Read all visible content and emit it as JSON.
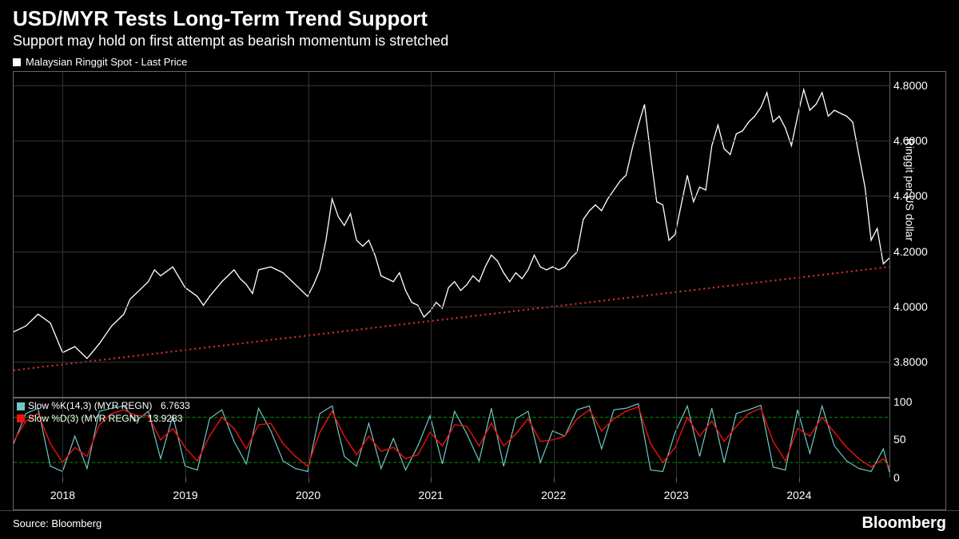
{
  "title": "USD/MYR Tests Long-Term Trend Support",
  "subtitle": "Support may hold on first attempt as bearish momentum is stretched",
  "legend_main": "Malaysian Ringgit Spot - Last Price",
  "legend_main_color": "#ffffff",
  "source": "Source: Bloomberg",
  "brand": "Bloomberg",
  "colors": {
    "background": "#000000",
    "text": "#ffffff",
    "grid": "#333333",
    "border": "#666666",
    "price_line": "#ffffff",
    "trendline": "#e03030",
    "slow_k": "#6fc8c8",
    "slow_d": "#f01010",
    "ref_line": "#009900"
  },
  "main_chart": {
    "type": "line",
    "ylabel": "Ringgit per US dollar",
    "ylim": [
      3.75,
      4.85
    ],
    "yticks": [
      3.8,
      4.0,
      4.2,
      4.4,
      4.6,
      4.8
    ],
    "xlim": [
      2017.6,
      2024.75
    ],
    "xticks": [
      2018,
      2019,
      2020,
      2021,
      2022,
      2023,
      2024
    ],
    "line_width": 1.3,
    "trendline": {
      "start": [
        2017.6,
        3.84
      ],
      "end": [
        2024.75,
        4.19
      ],
      "color": "#e03030",
      "style": "dotted",
      "width": 2
    },
    "data": [
      [
        2017.6,
        3.97
      ],
      [
        2017.7,
        3.99
      ],
      [
        2017.8,
        4.03
      ],
      [
        2017.9,
        4.0
      ],
      [
        2018.0,
        3.9
      ],
      [
        2018.1,
        3.92
      ],
      [
        2018.2,
        3.88
      ],
      [
        2018.3,
        3.93
      ],
      [
        2018.4,
        3.99
      ],
      [
        2018.5,
        4.03
      ],
      [
        2018.55,
        4.08
      ],
      [
        2018.6,
        4.1
      ],
      [
        2018.7,
        4.14
      ],
      [
        2018.75,
        4.18
      ],
      [
        2018.8,
        4.16
      ],
      [
        2018.9,
        4.19
      ],
      [
        2019.0,
        4.12
      ],
      [
        2019.1,
        4.09
      ],
      [
        2019.15,
        4.06
      ],
      [
        2019.2,
        4.09
      ],
      [
        2019.3,
        4.14
      ],
      [
        2019.4,
        4.18
      ],
      [
        2019.45,
        4.15
      ],
      [
        2019.5,
        4.13
      ],
      [
        2019.55,
        4.1
      ],
      [
        2019.6,
        4.18
      ],
      [
        2019.7,
        4.19
      ],
      [
        2019.8,
        4.17
      ],
      [
        2019.9,
        4.13
      ],
      [
        2020.0,
        4.09
      ],
      [
        2020.05,
        4.13
      ],
      [
        2020.1,
        4.18
      ],
      [
        2020.15,
        4.28
      ],
      [
        2020.2,
        4.42
      ],
      [
        2020.25,
        4.36
      ],
      [
        2020.3,
        4.33
      ],
      [
        2020.35,
        4.37
      ],
      [
        2020.4,
        4.28
      ],
      [
        2020.45,
        4.26
      ],
      [
        2020.5,
        4.28
      ],
      [
        2020.55,
        4.23
      ],
      [
        2020.6,
        4.16
      ],
      [
        2020.7,
        4.14
      ],
      [
        2020.75,
        4.17
      ],
      [
        2020.8,
        4.11
      ],
      [
        2020.85,
        4.07
      ],
      [
        2020.9,
        4.06
      ],
      [
        2020.95,
        4.02
      ],
      [
        2021.0,
        4.04
      ],
      [
        2021.05,
        4.07
      ],
      [
        2021.1,
        4.05
      ],
      [
        2021.15,
        4.12
      ],
      [
        2021.2,
        4.14
      ],
      [
        2021.25,
        4.11
      ],
      [
        2021.3,
        4.13
      ],
      [
        2021.35,
        4.16
      ],
      [
        2021.4,
        4.14
      ],
      [
        2021.45,
        4.19
      ],
      [
        2021.5,
        4.23
      ],
      [
        2021.55,
        4.21
      ],
      [
        2021.6,
        4.17
      ],
      [
        2021.65,
        4.14
      ],
      [
        2021.7,
        4.17
      ],
      [
        2021.75,
        4.15
      ],
      [
        2021.8,
        4.18
      ],
      [
        2021.85,
        4.23
      ],
      [
        2021.9,
        4.19
      ],
      [
        2021.95,
        4.18
      ],
      [
        2022.0,
        4.19
      ],
      [
        2022.05,
        4.18
      ],
      [
        2022.1,
        4.19
      ],
      [
        2022.15,
        4.22
      ],
      [
        2022.2,
        4.24
      ],
      [
        2022.25,
        4.35
      ],
      [
        2022.3,
        4.38
      ],
      [
        2022.35,
        4.4
      ],
      [
        2022.4,
        4.38
      ],
      [
        2022.45,
        4.42
      ],
      [
        2022.5,
        4.45
      ],
      [
        2022.55,
        4.48
      ],
      [
        2022.6,
        4.5
      ],
      [
        2022.65,
        4.59
      ],
      [
        2022.7,
        4.67
      ],
      [
        2022.75,
        4.74
      ],
      [
        2022.8,
        4.57
      ],
      [
        2022.85,
        4.41
      ],
      [
        2022.9,
        4.4
      ],
      [
        2022.95,
        4.28
      ],
      [
        2023.0,
        4.3
      ],
      [
        2023.05,
        4.4
      ],
      [
        2023.1,
        4.5
      ],
      [
        2023.15,
        4.41
      ],
      [
        2023.2,
        4.46
      ],
      [
        2023.25,
        4.45
      ],
      [
        2023.3,
        4.6
      ],
      [
        2023.35,
        4.67
      ],
      [
        2023.4,
        4.59
      ],
      [
        2023.45,
        4.57
      ],
      [
        2023.5,
        4.64
      ],
      [
        2023.55,
        4.65
      ],
      [
        2023.6,
        4.68
      ],
      [
        2023.65,
        4.7
      ],
      [
        2023.7,
        4.73
      ],
      [
        2023.75,
        4.78
      ],
      [
        2023.8,
        4.68
      ],
      [
        2023.85,
        4.7
      ],
      [
        2023.9,
        4.66
      ],
      [
        2023.95,
        4.6
      ],
      [
        2024.0,
        4.7
      ],
      [
        2024.05,
        4.79
      ],
      [
        2024.1,
        4.72
      ],
      [
        2024.15,
        4.74
      ],
      [
        2024.2,
        4.78
      ],
      [
        2024.25,
        4.7
      ],
      [
        2024.3,
        4.72
      ],
      [
        2024.35,
        4.71
      ],
      [
        2024.4,
        4.7
      ],
      [
        2024.45,
        4.68
      ],
      [
        2024.5,
        4.57
      ],
      [
        2024.55,
        4.46
      ],
      [
        2024.6,
        4.28
      ],
      [
        2024.65,
        4.32
      ],
      [
        2024.7,
        4.2
      ],
      [
        2024.75,
        4.22
      ]
    ]
  },
  "sub_chart": {
    "type": "oscillator",
    "ylim": [
      0,
      105
    ],
    "yticks": [
      0,
      50,
      100
    ],
    "ref_lines": [
      20,
      80
    ],
    "legend": [
      {
        "label": "Slow %K(14,3) (MYR REGN)",
        "value": "6.7633",
        "color": "#6fc8c8"
      },
      {
        "label": "Slow %D(3) (MYR REGN)",
        "value": "13.9283",
        "color": "#f01010"
      }
    ],
    "k_data": [
      [
        2017.6,
        45
      ],
      [
        2017.7,
        85
      ],
      [
        2017.8,
        92
      ],
      [
        2017.9,
        15
      ],
      [
        2018.0,
        8
      ],
      [
        2018.1,
        55
      ],
      [
        2018.2,
        12
      ],
      [
        2018.3,
        88
      ],
      [
        2018.4,
        92
      ],
      [
        2018.5,
        95
      ],
      [
        2018.6,
        75
      ],
      [
        2018.7,
        88
      ],
      [
        2018.8,
        25
      ],
      [
        2018.9,
        82
      ],
      [
        2019.0,
        15
      ],
      [
        2019.1,
        10
      ],
      [
        2019.2,
        78
      ],
      [
        2019.3,
        90
      ],
      [
        2019.4,
        48
      ],
      [
        2019.5,
        18
      ],
      [
        2019.6,
        92
      ],
      [
        2019.7,
        62
      ],
      [
        2019.8,
        22
      ],
      [
        2019.9,
        12
      ],
      [
        2020.0,
        8
      ],
      [
        2020.1,
        85
      ],
      [
        2020.2,
        95
      ],
      [
        2020.3,
        28
      ],
      [
        2020.4,
        15
      ],
      [
        2020.5,
        72
      ],
      [
        2020.6,
        12
      ],
      [
        2020.7,
        52
      ],
      [
        2020.8,
        10
      ],
      [
        2020.9,
        42
      ],
      [
        2021.0,
        82
      ],
      [
        2021.1,
        18
      ],
      [
        2021.2,
        88
      ],
      [
        2021.3,
        58
      ],
      [
        2021.4,
        22
      ],
      [
        2021.5,
        92
      ],
      [
        2021.6,
        15
      ],
      [
        2021.7,
        78
      ],
      [
        2021.8,
        88
      ],
      [
        2021.9,
        20
      ],
      [
        2022.0,
        62
      ],
      [
        2022.1,
        55
      ],
      [
        2022.2,
        90
      ],
      [
        2022.3,
        95
      ],
      [
        2022.4,
        38
      ],
      [
        2022.5,
        90
      ],
      [
        2022.6,
        92
      ],
      [
        2022.7,
        98
      ],
      [
        2022.8,
        10
      ],
      [
        2022.9,
        8
      ],
      [
        2023.0,
        60
      ],
      [
        2023.1,
        95
      ],
      [
        2023.2,
        28
      ],
      [
        2023.3,
        92
      ],
      [
        2023.4,
        20
      ],
      [
        2023.5,
        85
      ],
      [
        2023.6,
        90
      ],
      [
        2023.7,
        96
      ],
      [
        2023.8,
        14
      ],
      [
        2023.9,
        10
      ],
      [
        2024.0,
        90
      ],
      [
        2024.1,
        32
      ],
      [
        2024.2,
        95
      ],
      [
        2024.3,
        42
      ],
      [
        2024.4,
        22
      ],
      [
        2024.5,
        12
      ],
      [
        2024.6,
        8
      ],
      [
        2024.7,
        38
      ],
      [
        2024.75,
        7
      ]
    ],
    "d_data": [
      [
        2017.6,
        48
      ],
      [
        2017.7,
        75
      ],
      [
        2017.8,
        85
      ],
      [
        2017.9,
        45
      ],
      [
        2018.0,
        20
      ],
      [
        2018.1,
        40
      ],
      [
        2018.2,
        28
      ],
      [
        2018.3,
        70
      ],
      [
        2018.4,
        85
      ],
      [
        2018.5,
        90
      ],
      [
        2018.6,
        82
      ],
      [
        2018.7,
        82
      ],
      [
        2018.8,
        50
      ],
      [
        2018.9,
        65
      ],
      [
        2019.0,
        40
      ],
      [
        2019.1,
        22
      ],
      [
        2019.2,
        55
      ],
      [
        2019.3,
        80
      ],
      [
        2019.4,
        65
      ],
      [
        2019.5,
        38
      ],
      [
        2019.6,
        70
      ],
      [
        2019.7,
        72
      ],
      [
        2019.8,
        45
      ],
      [
        2019.9,
        28
      ],
      [
        2020.0,
        15
      ],
      [
        2020.1,
        60
      ],
      [
        2020.2,
        88
      ],
      [
        2020.3,
        55
      ],
      [
        2020.4,
        30
      ],
      [
        2020.5,
        55
      ],
      [
        2020.6,
        35
      ],
      [
        2020.7,
        40
      ],
      [
        2020.8,
        25
      ],
      [
        2020.9,
        30
      ],
      [
        2021.0,
        60
      ],
      [
        2021.1,
        42
      ],
      [
        2021.2,
        70
      ],
      [
        2021.3,
        68
      ],
      [
        2021.4,
        42
      ],
      [
        2021.5,
        72
      ],
      [
        2021.6,
        42
      ],
      [
        2021.7,
        58
      ],
      [
        2021.8,
        78
      ],
      [
        2021.9,
        48
      ],
      [
        2022.0,
        50
      ],
      [
        2022.1,
        55
      ],
      [
        2022.2,
        78
      ],
      [
        2022.3,
        90
      ],
      [
        2022.4,
        62
      ],
      [
        2022.5,
        78
      ],
      [
        2022.6,
        88
      ],
      [
        2022.7,
        94
      ],
      [
        2022.8,
        45
      ],
      [
        2022.9,
        20
      ],
      [
        2023.0,
        40
      ],
      [
        2023.1,
        80
      ],
      [
        2023.2,
        55
      ],
      [
        2023.3,
        75
      ],
      [
        2023.4,
        48
      ],
      [
        2023.5,
        68
      ],
      [
        2023.6,
        85
      ],
      [
        2023.7,
        92
      ],
      [
        2023.8,
        48
      ],
      [
        2023.9,
        22
      ],
      [
        2024.0,
        65
      ],
      [
        2024.1,
        55
      ],
      [
        2024.2,
        80
      ],
      [
        2024.3,
        60
      ],
      [
        2024.4,
        40
      ],
      [
        2024.5,
        25
      ],
      [
        2024.6,
        14
      ],
      [
        2024.7,
        25
      ],
      [
        2024.75,
        14
      ]
    ]
  }
}
